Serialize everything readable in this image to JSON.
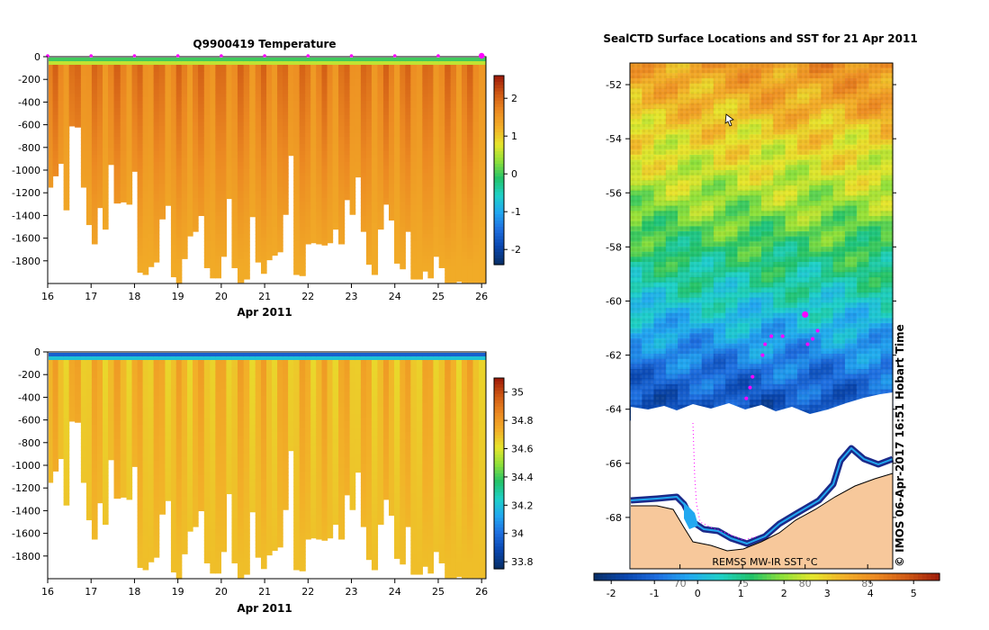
{
  "colors": {
    "depth_scale": [
      "#08306b",
      "#0a47b0",
      "#1f6fe0",
      "#22a8f0",
      "#1fd0c8",
      "#22c26a",
      "#8ee03a",
      "#e6e62c",
      "#f2b028",
      "#ec8a22",
      "#d05a14",
      "#a01e0a"
    ],
    "land": "#f7c89b",
    "ice_edge": "#1b2a8a",
    "marker": "#ff00ff",
    "background": "#ffffff"
  },
  "charts": {
    "temperature": {
      "title": "Q9900419  Temperature",
      "xlabel": "Apr 2011",
      "x_ticks": [
        "16",
        "17",
        "18",
        "19",
        "20",
        "21",
        "22",
        "23",
        "24",
        "25",
        "26"
      ],
      "y_ticks": [
        "0",
        "-200",
        "-400",
        "-600",
        "-800",
        "-1000",
        "-1200",
        "-1400",
        "-1600",
        "-1800"
      ],
      "colorbar_ticks": [
        "2",
        "1",
        "0",
        "-1",
        "-2"
      ]
    },
    "salinity": {
      "title": "",
      "xlabel": "Apr 2011",
      "x_ticks": [
        "16",
        "17",
        "18",
        "19",
        "20",
        "21",
        "22",
        "23",
        "24",
        "25",
        "26"
      ],
      "y_ticks": [
        "0",
        "-200",
        "-400",
        "-600",
        "-800",
        "-1000",
        "-1200",
        "-1400",
        "-1600",
        "-1800"
      ],
      "colorbar_ticks": [
        "35",
        "34.8",
        "34.6",
        "34.4",
        "34.2",
        "34",
        "33.8"
      ]
    },
    "map": {
      "title": "SealCTD Surface Locations and SST for 21 Apr 2011",
      "lat_ticks": [
        "-52",
        "-54",
        "-56",
        "-58",
        "-60",
        "-62",
        "-64",
        "-66",
        "-68"
      ],
      "lon_ticks": [
        "70",
        "75",
        "80",
        "85"
      ],
      "product_label": "REMSS MW-IR SST °C",
      "credit": "©  IMOS 06-Apr-2017 16:51 Hobart Time",
      "colorbar_ticks": [
        "-2",
        "-1",
        "0",
        "1",
        "2",
        "3",
        "4",
        "5"
      ]
    }
  },
  "chart_data": [
    {
      "type": "heatmap",
      "title": "Q9900419  Temperature",
      "xlabel": "Apr 2011",
      "ylabel": "",
      "x_ticks": [
        "16",
        "17",
        "18",
        "19",
        "20",
        "21",
        "22",
        "23",
        "24",
        "25",
        "26"
      ],
      "xlim": [
        16,
        26.1
      ],
      "ylim": [
        -2000,
        0
      ],
      "colorbar": {
        "range": [
          -2.4,
          2.6
        ],
        "ticks": [
          2,
          1,
          0,
          -1,
          -2
        ]
      },
      "surface_value": 0.0,
      "interior_value": 1.8,
      "deep_value": 1.3,
      "profile_days": [
        16.05,
        16.18,
        16.3,
        16.43,
        16.55,
        16.7,
        16.83,
        16.95,
        17.08,
        17.2,
        17.33,
        17.45,
        17.6,
        17.75,
        17.88,
        18.0,
        18.13,
        18.25,
        18.38,
        18.5,
        18.63,
        18.78,
        18.9,
        19.02,
        19.15,
        19.28,
        19.4,
        19.53,
        19.68,
        19.8,
        19.93,
        20.05,
        20.18,
        20.3,
        20.45,
        20.58,
        20.72,
        20.85,
        20.98,
        21.1,
        21.23,
        21.35,
        21.48,
        21.6,
        21.73,
        21.87,
        22.0,
        22.12,
        22.25,
        22.38,
        22.5,
        22.63,
        22.77,
        22.9,
        23.02,
        23.15,
        23.28,
        23.4,
        23.53,
        23.67,
        23.8,
        23.92,
        24.05,
        24.18,
        24.3,
        24.43,
        24.57,
        24.7,
        24.82,
        24.95,
        25.08,
        25.22,
        25.35,
        25.48,
        25.6,
        25.73,
        25.87,
        26.0
      ],
      "max_depth_m": [
        1150,
        1050,
        940,
        1350,
        610,
        620,
        1150,
        1480,
        1650,
        1330,
        1520,
        950,
        1290,
        1280,
        1300,
        1010,
        1900,
        1920,
        1850,
        1810,
        1430,
        1310,
        1940,
        2000,
        1780,
        1580,
        1540,
        1400,
        1860,
        1950,
        1950,
        1760,
        1250,
        1860,
        1990,
        1960,
        1410,
        1810,
        1910,
        1790,
        1750,
        1720,
        1390,
        870,
        1920,
        1930,
        1650,
        1640,
        1650,
        1660,
        1640,
        1520,
        1650,
        1260,
        1390,
        1060,
        1540,
        1830,
        1920,
        1520,
        1300,
        1440,
        1820,
        1870,
        1540,
        1960,
        1960,
        1890,
        1950,
        1760,
        1860,
        1990,
        1990,
        1980,
        1990,
        1990,
        1990,
        1990
      ]
    },
    {
      "type": "heatmap",
      "title": "",
      "xlabel": "Apr 2011",
      "ylabel": "",
      "x_ticks": [
        "16",
        "17",
        "18",
        "19",
        "20",
        "21",
        "22",
        "23",
        "24",
        "25",
        "26"
      ],
      "xlim": [
        16,
        26.1
      ],
      "ylim": [
        -2000,
        0
      ],
      "colorbar": {
        "range": [
          33.75,
          35.1
        ],
        "ticks": [
          35,
          34.8,
          34.6,
          34.4,
          34.2,
          34,
          33.8
        ]
      },
      "surface_value": 33.95,
      "interior_value": 34.72,
      "deep_value": 34.7,
      "profile_days": [
        16.05,
        16.18,
        16.3,
        16.43,
        16.55,
        16.7,
        16.83,
        16.95,
        17.08,
        17.2,
        17.33,
        17.45,
        17.6,
        17.75,
        17.88,
        18.0,
        18.13,
        18.25,
        18.38,
        18.5,
        18.63,
        18.78,
        18.9,
        19.02,
        19.15,
        19.28,
        19.4,
        19.53,
        19.68,
        19.8,
        19.93,
        20.05,
        20.18,
        20.3,
        20.45,
        20.58,
        20.72,
        20.85,
        20.98,
        21.1,
        21.23,
        21.35,
        21.48,
        21.6,
        21.73,
        21.87,
        22.0,
        22.12,
        22.25,
        22.38,
        22.5,
        22.63,
        22.77,
        22.9,
        23.02,
        23.15,
        23.28,
        23.4,
        23.53,
        23.67,
        23.8,
        23.92,
        24.05,
        24.18,
        24.3,
        24.43,
        24.57,
        24.7,
        24.82,
        24.95,
        25.08,
        25.22,
        25.35,
        25.48,
        25.6,
        25.73,
        25.87,
        26.0
      ],
      "max_depth_m": [
        1150,
        1050,
        940,
        1350,
        610,
        620,
        1150,
        1480,
        1650,
        1330,
        1520,
        950,
        1290,
        1280,
        1300,
        1010,
        1900,
        1920,
        1850,
        1810,
        1430,
        1310,
        1940,
        2000,
        1780,
        1580,
        1540,
        1400,
        1860,
        1950,
        1950,
        1760,
        1250,
        1860,
        1990,
        1960,
        1410,
        1810,
        1910,
        1790,
        1750,
        1720,
        1390,
        870,
        1920,
        1930,
        1650,
        1640,
        1650,
        1660,
        1640,
        1520,
        1650,
        1260,
        1390,
        1060,
        1540,
        1830,
        1920,
        1520,
        1300,
        1440,
        1820,
        1870,
        1540,
        1960,
        1960,
        1890,
        1950,
        1760,
        1860,
        1990,
        1990,
        1980,
        1990,
        1990,
        1990,
        1990
      ]
    },
    {
      "type": "heatmap",
      "title": "SealCTD Surface Locations and SST for 21 Apr 2011",
      "xlabel": "",
      "ylabel": "",
      "xlim": [
        66,
        87
      ],
      "ylim": [
        -69.9,
        -51.2
      ],
      "colorbar": {
        "range": [
          -2.4,
          5.6
        ],
        "ticks": [
          -2,
          -1,
          0,
          1,
          2,
          3,
          4,
          5
        ]
      },
      "sst_by_latitude": [
        {
          "lat": -51.2,
          "sst": 3.6
        },
        {
          "lat": -53.0,
          "sst": 3.1
        },
        {
          "lat": -55.0,
          "sst": 2.5
        },
        {
          "lat": -56.5,
          "sst": 1.9
        },
        {
          "lat": -58.0,
          "sst": 1.2
        },
        {
          "lat": -59.5,
          "sst": 0.6
        },
        {
          "lat": -61.0,
          "sst": -0.2
        },
        {
          "lat": -62.5,
          "sst": -1.0
        },
        {
          "lat": -63.8,
          "sst": -1.5
        }
      ],
      "surface_locations": [
        {
          "lon": 80.0,
          "lat": -60.5
        },
        {
          "lon": 81.0,
          "lat": -61.1
        },
        {
          "lon": 80.6,
          "lat": -61.4
        },
        {
          "lon": 80.2,
          "lat": -61.6
        },
        {
          "lon": 78.2,
          "lat": -61.3
        },
        {
          "lon": 77.3,
          "lat": -61.3
        },
        {
          "lon": 76.8,
          "lat": -61.6
        },
        {
          "lon": 76.6,
          "lat": -62.0
        },
        {
          "lon": 75.8,
          "lat": -62.8
        },
        {
          "lon": 75.6,
          "lat": -63.2
        },
        {
          "lon": 75.3,
          "lat": -63.6
        }
      ]
    }
  ]
}
